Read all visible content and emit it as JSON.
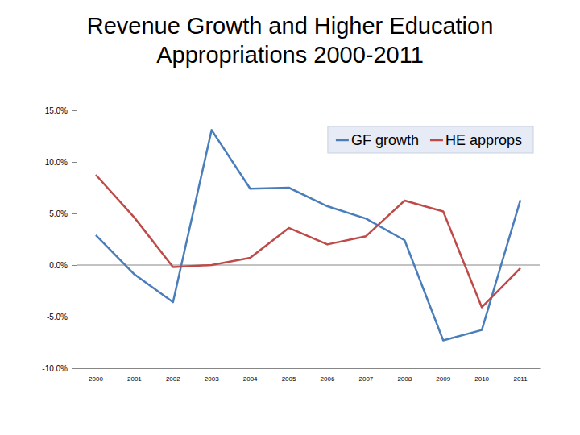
{
  "chart_data": {
    "type": "line",
    "title": "Revenue Growth and Higher Education Appropriations 2000-2011",
    "categories": [
      "2000",
      "2001",
      "2002",
      "2003",
      "2004",
      "2005",
      "2006",
      "2007",
      "2008",
      "2009",
      "2010",
      "2011"
    ],
    "series": [
      {
        "name": "GF growth",
        "color": "#4a7ebb",
        "values": [
          2.9,
          -0.9,
          -3.6,
          13.1,
          7.4,
          7.5,
          5.7,
          4.5,
          2.4,
          -7.3,
          -6.3,
          6.3
        ]
      },
      {
        "name": "HE approps",
        "color": "#be4b48",
        "values": [
          8.75,
          4.6,
          -0.2,
          0.0,
          0.7,
          3.6,
          2.0,
          2.8,
          6.25,
          5.2,
          -4.1,
          -0.3
        ]
      }
    ],
    "ylim": [
      -10,
      15
    ],
    "yticks": [
      {
        "value": -10,
        "label": "-10.0%"
      },
      {
        "value": -5,
        "label": "-5.0%"
      },
      {
        "value": 0,
        "label": "0.0%"
      },
      {
        "value": 5,
        "label": "5.0%"
      },
      {
        "value": 10,
        "label": "10.0%"
      },
      {
        "value": 15,
        "label": "15.0%"
      }
    ],
    "grid": false,
    "legend": "top-right"
  }
}
